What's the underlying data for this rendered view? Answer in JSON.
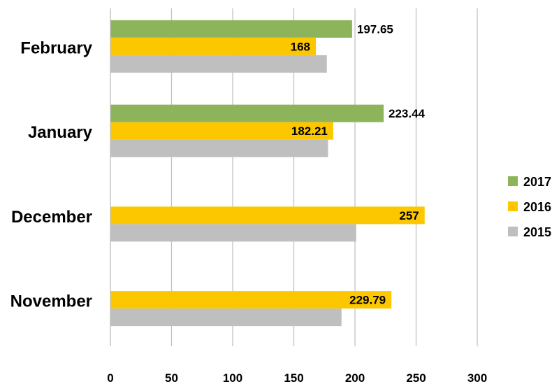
{
  "chart_data": {
    "type": "bar",
    "orientation": "horizontal",
    "categories": [
      "February",
      "January",
      "December",
      "November"
    ],
    "series": [
      {
        "name": "2017",
        "color": "#8db45b",
        "values": [
          197.65,
          223.44,
          null,
          null
        ]
      },
      {
        "name": "2016",
        "color": "#fdc700",
        "values": [
          168,
          182.21,
          257,
          229.79
        ]
      },
      {
        "name": "2015",
        "color": "#bfbfbf",
        "values": [
          177,
          178,
          201,
          189
        ]
      }
    ],
    "data_labels": {
      "2017": [
        "197.65",
        "223.44",
        null,
        null
      ],
      "2016": [
        "168",
        "182.21",
        "257",
        "229.79"
      ]
    },
    "x_ticks": [
      "0",
      "50",
      "100",
      "150",
      "200",
      "250",
      "300"
    ],
    "xlim": [
      0,
      300
    ],
    "grid": "vertical",
    "legend_position": "right",
    "legend": [
      "2017",
      "2016",
      "2015"
    ]
  }
}
